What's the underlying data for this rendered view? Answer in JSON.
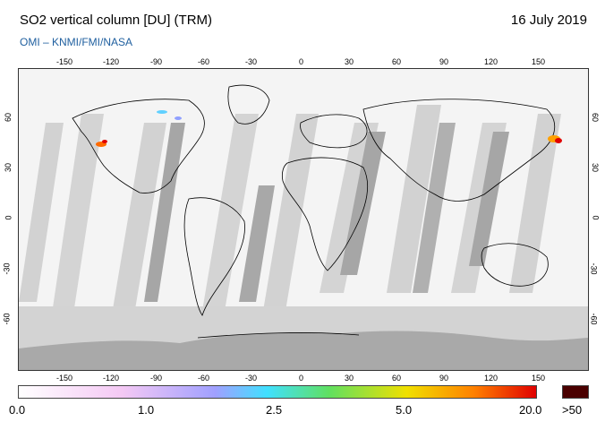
{
  "header": {
    "title": "SO2 vertical column [DU] (TRM)",
    "date": "16 July 2019",
    "source": "OMI  –  KNMI/FMI/NASA"
  },
  "map": {
    "lon_ticks": [
      "-150",
      "-120",
      "-90",
      "-60",
      "-30",
      "0",
      "30",
      "60",
      "90",
      "120",
      "150"
    ],
    "lat_ticks": [
      "60",
      "30",
      "0",
      "-30",
      "-60"
    ],
    "projection": "equirectangular",
    "no_data_color": "#c8c8c8",
    "land_outline_color": "#000000"
  },
  "colorbar": {
    "labels": [
      "0.0",
      "1.0",
      "2.5",
      "5.0",
      "20.0"
    ],
    "overflow_label": ">50",
    "overflow_color": "#4a0000",
    "stops": [
      "#ffffff",
      "#f4c8f4",
      "#a0a0ff",
      "#40e0ff",
      "#60e060",
      "#f0e000",
      "#ff8000",
      "#e00000"
    ]
  }
}
